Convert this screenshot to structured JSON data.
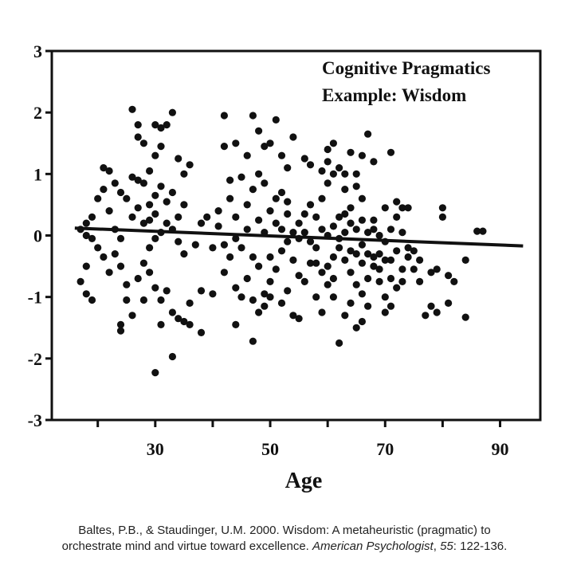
{
  "chart_data": {
    "type": "scatter",
    "title": "",
    "xlabel": "Age",
    "ylabel": "",
    "xlim": [
      12,
      97
    ],
    "ylim": [
      -3,
      3
    ],
    "xticks": [
      20,
      30,
      40,
      50,
      60,
      70,
      80,
      90
    ],
    "xtick_labels": [
      "",
      "30",
      "",
      "50",
      "",
      "70",
      "",
      "90"
    ],
    "yticks": [
      3,
      2,
      1,
      0,
      -1,
      -2,
      -3
    ],
    "ytick_labels": [
      "3",
      "2",
      "1",
      "0",
      "-1",
      "-2",
      "-3"
    ],
    "annotation": [
      "Cognitive Pragmatics",
      "Example: Wisdom"
    ],
    "grid": false,
    "trend_line": {
      "x": [
        16,
        94
      ],
      "y": [
        0.12,
        -0.17
      ]
    },
    "points": [
      [
        26,
        2.05
      ],
      [
        27,
        1.8
      ],
      [
        27,
        1.6
      ],
      [
        33,
        2.0
      ],
      [
        30,
        1.8
      ],
      [
        31,
        1.75
      ],
      [
        32,
        1.8
      ],
      [
        28,
        1.5
      ],
      [
        31,
        1.45
      ],
      [
        34,
        1.25
      ],
      [
        36,
        1.15
      ],
      [
        35,
        1.0
      ],
      [
        30,
        1.3
      ],
      [
        29,
        1.05
      ],
      [
        21,
        1.1
      ],
      [
        22,
        1.05
      ],
      [
        26,
        0.95
      ],
      [
        27,
        0.9
      ],
      [
        28,
        0.85
      ],
      [
        24,
        0.7
      ],
      [
        25,
        0.6
      ],
      [
        19,
        0.3
      ],
      [
        18,
        0.2
      ],
      [
        17,
        0.1
      ],
      [
        18,
        0.0
      ],
      [
        19,
        -0.05
      ],
      [
        20,
        -0.2
      ],
      [
        18,
        -0.5
      ],
      [
        17,
        -0.75
      ],
      [
        18,
        -0.95
      ],
      [
        19,
        -1.05
      ],
      [
        23,
        -0.3
      ],
      [
        24,
        -0.5
      ],
      [
        25,
        -0.8
      ],
      [
        25,
        -1.05
      ],
      [
        26,
        -1.3
      ],
      [
        24,
        -1.45
      ],
      [
        24,
        -1.55
      ],
      [
        27,
        -0.7
      ],
      [
        28,
        -0.45
      ],
      [
        29,
        -0.2
      ],
      [
        30,
        -0.05
      ],
      [
        31,
        0.05
      ],
      [
        32,
        0.2
      ],
      [
        33,
        0.1
      ],
      [
        34,
        -0.1
      ],
      [
        35,
        -0.3
      ],
      [
        29,
        -0.6
      ],
      [
        30,
        -0.85
      ],
      [
        31,
        -1.05
      ],
      [
        32,
        -0.9
      ],
      [
        33,
        -1.25
      ],
      [
        34,
        -1.35
      ],
      [
        35,
        -1.4
      ],
      [
        36,
        -1.45
      ],
      [
        30,
        -2.23
      ],
      [
        33,
        -1.97
      ],
      [
        38,
        -1.58
      ],
      [
        31,
        -1.45
      ],
      [
        28,
        -1.05
      ],
      [
        26,
        0.3
      ],
      [
        27,
        0.45
      ],
      [
        28,
        0.2
      ],
      [
        29,
        0.5
      ],
      [
        30,
        0.65
      ],
      [
        31,
        0.8
      ],
      [
        32,
        0.55
      ],
      [
        33,
        0.7
      ],
      [
        34,
        0.3
      ],
      [
        35,
        0.5
      ],
      [
        22,
        0.4
      ],
      [
        23,
        0.1
      ],
      [
        24,
        -0.05
      ],
      [
        21,
        -0.35
      ],
      [
        22,
        -0.6
      ],
      [
        20,
        0.6
      ],
      [
        21,
        0.75
      ],
      [
        23,
        0.85
      ],
      [
        29,
        0.25
      ],
      [
        30,
        0.35
      ],
      [
        37,
        -0.15
      ],
      [
        38,
        0.2
      ],
      [
        39,
        0.3
      ],
      [
        40,
        -0.2
      ],
      [
        41,
        0.4
      ],
      [
        38,
        -0.9
      ],
      [
        40,
        -0.95
      ],
      [
        36,
        -1.1
      ],
      [
        42,
        1.95
      ],
      [
        44,
        1.5
      ],
      [
        47,
        1.95
      ],
      [
        48,
        1.7
      ],
      [
        51,
        1.88
      ],
      [
        42,
        1.45
      ],
      [
        46,
        1.3
      ],
      [
        49,
        1.45
      ],
      [
        50,
        1.5
      ],
      [
        52,
        1.3
      ],
      [
        54,
        1.6
      ],
      [
        56,
        1.25
      ],
      [
        57,
        1.15
      ],
      [
        53,
        1.1
      ],
      [
        48,
        1.0
      ],
      [
        45,
        0.95
      ],
      [
        43,
        0.9
      ],
      [
        47,
        0.75
      ],
      [
        49,
        0.85
      ],
      [
        51,
        0.6
      ],
      [
        50,
        0.4
      ],
      [
        48,
        0.25
      ],
      [
        46,
        0.1
      ],
      [
        44,
        -0.05
      ],
      [
        45,
        -0.2
      ],
      [
        47,
        -0.35
      ],
      [
        48,
        -0.5
      ],
      [
        46,
        -0.7
      ],
      [
        44,
        -0.85
      ],
      [
        45,
        -1.0
      ],
      [
        47,
        -1.05
      ],
      [
        48,
        -1.25
      ],
      [
        49,
        -0.95
      ],
      [
        50,
        -0.75
      ],
      [
        51,
        -0.55
      ],
      [
        52,
        -0.25
      ],
      [
        53,
        -0.1
      ],
      [
        54,
        0.05
      ],
      [
        55,
        0.2
      ],
      [
        56,
        0.35
      ],
      [
        57,
        0.5
      ],
      [
        53,
        0.55
      ],
      [
        52,
        0.7
      ],
      [
        54,
        -0.4
      ],
      [
        55,
        -0.65
      ],
      [
        53,
        -0.9
      ],
      [
        52,
        -1.1
      ],
      [
        54,
        -1.3
      ],
      [
        55,
        -1.35
      ],
      [
        50,
        -1.0
      ],
      [
        49,
        -1.15
      ],
      [
        47,
        -1.72
      ],
      [
        44,
        -1.45
      ],
      [
        42,
        -0.6
      ],
      [
        43,
        -0.35
      ],
      [
        44,
        0.3
      ],
      [
        43,
        0.6
      ],
      [
        41,
        0.15
      ],
      [
        42,
        -0.15
      ],
      [
        46,
        0.5
      ],
      [
        49,
        0.05
      ],
      [
        51,
        0.2
      ],
      [
        50,
        -0.35
      ],
      [
        56,
        -0.75
      ],
      [
        57,
        -0.45
      ],
      [
        58,
        -0.2
      ],
      [
        59,
        0.1
      ],
      [
        58,
        0.3
      ],
      [
        59,
        0.6
      ],
      [
        60,
        0.85
      ],
      [
        61,
        1.0
      ],
      [
        60,
        1.2
      ],
      [
        59,
        1.05
      ],
      [
        61,
        1.5
      ],
      [
        60,
        1.4
      ],
      [
        62,
        1.1
      ],
      [
        63,
        0.75
      ],
      [
        64,
        1.35
      ],
      [
        65,
        1.0
      ],
      [
        66,
        1.3
      ],
      [
        67,
        1.65
      ],
      [
        68,
        1.2
      ],
      [
        71,
        1.35
      ],
      [
        63,
        1.0
      ],
      [
        65,
        0.8
      ],
      [
        66,
        0.6
      ],
      [
        64,
        0.45
      ],
      [
        62,
        0.3
      ],
      [
        61,
        0.15
      ],
      [
        60,
        0.0
      ],
      [
        62,
        -0.2
      ],
      [
        63,
        -0.4
      ],
      [
        64,
        -0.6
      ],
      [
        65,
        -0.8
      ],
      [
        66,
        -0.95
      ],
      [
        67,
        -0.7
      ],
      [
        68,
        -0.5
      ],
      [
        69,
        -0.3
      ],
      [
        70,
        -0.1
      ],
      [
        71,
        0.1
      ],
      [
        72,
        0.3
      ],
      [
        70,
        0.45
      ],
      [
        72,
        0.55
      ],
      [
        73,
        0.45
      ],
      [
        68,
        0.25
      ],
      [
        67,
        0.05
      ],
      [
        66,
        -0.15
      ],
      [
        65,
        -0.3
      ],
      [
        64,
        -1.1
      ],
      [
        63,
        -1.3
      ],
      [
        65,
        -1.5
      ],
      [
        66,
        -1.4
      ],
      [
        62,
        -1.75
      ],
      [
        61,
        -1.0
      ],
      [
        60,
        -0.8
      ],
      [
        58,
        -1.0
      ],
      [
        59,
        -1.25
      ],
      [
        69,
        -0.75
      ],
      [
        70,
        -1.0
      ],
      [
        71,
        -1.15
      ],
      [
        72,
        -0.85
      ],
      [
        73,
        -0.55
      ],
      [
        74,
        -0.2
      ],
      [
        73,
        -0.75
      ],
      [
        70,
        -1.25
      ],
      [
        67,
        -1.15
      ],
      [
        61,
        -0.35
      ],
      [
        63,
        0.05
      ],
      [
        64,
        0.2
      ],
      [
        66,
        0.25
      ],
      [
        68,
        -0.35
      ],
      [
        69,
        0.0
      ],
      [
        71,
        -0.4
      ],
      [
        74,
        -0.35
      ],
      [
        75,
        -0.25
      ],
      [
        76,
        -0.75
      ],
      [
        77,
        -1.3
      ],
      [
        78,
        -1.15
      ],
      [
        78,
        -0.6
      ],
      [
        79,
        -1.25
      ],
      [
        80,
        0.45
      ],
      [
        80,
        0.3
      ],
      [
        81,
        -0.65
      ],
      [
        81,
        -1.1
      ],
      [
        82,
        -0.75
      ],
      [
        84,
        -1.33
      ],
      [
        84,
        -0.4
      ],
      [
        86,
        0.07
      ],
      [
        87,
        0.07
      ],
      [
        79,
        -0.55
      ],
      [
        76,
        -0.4
      ],
      [
        57,
        -0.1
      ],
      [
        58,
        -0.45
      ],
      [
        59,
        -0.6
      ],
      [
        56,
        0.05
      ],
      [
        55,
        -0.05
      ],
      [
        53,
        0.35
      ],
      [
        52,
        0.1
      ],
      [
        60,
        -0.5
      ],
      [
        61,
        -0.7
      ],
      [
        62,
        -0.05
      ],
      [
        63,
        0.35
      ],
      [
        64,
        -0.25
      ],
      [
        65,
        0.1
      ],
      [
        66,
        -0.45
      ],
      [
        67,
        -0.3
      ],
      [
        68,
        0.1
      ],
      [
        69,
        -0.55
      ],
      [
        70,
        -0.4
      ],
      [
        71,
        -0.7
      ],
      [
        72,
        -0.25
      ],
      [
        73,
        0.05
      ],
      [
        74,
        0.45
      ],
      [
        75,
        -0.55
      ]
    ]
  },
  "caption": {
    "line1": "Baltes, P.B., & Staudinger, U.M. 2000. Wisdom: A metaheuristic (pragmatic) to",
    "line2_prefix": "orchestrate mind and virtue toward excellence. ",
    "line2_journal": "American Psychologist",
    "line2_volume_sep": ", ",
    "line2_volume": "55",
    "line2_pages": ": 122-136."
  }
}
